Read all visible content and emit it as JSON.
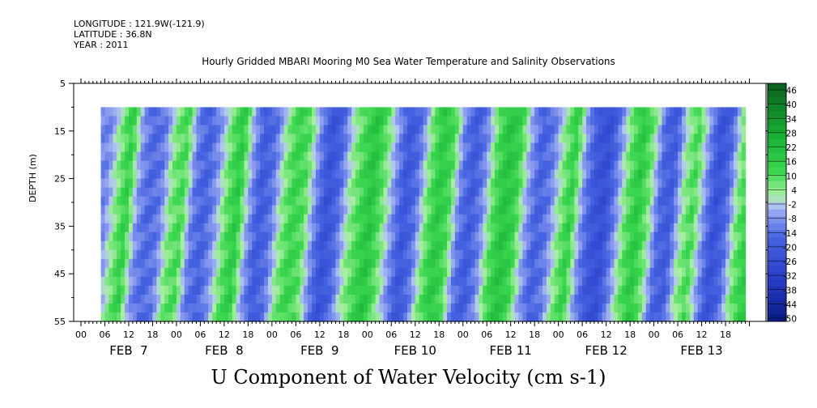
{
  "header": {
    "longitude": "LONGITUDE : 121.9W(-121.9)",
    "latitude": "LATITUDE : 36.8N",
    "year": "YEAR : 2011"
  },
  "chart_data": {
    "type": "heatmap",
    "title": "Hourly Gridded MBARI Mooring M0 Sea Water Temperature and Salinity Observations",
    "variable_title": "U Component of Water Velocity (cm s-1)",
    "ylabel": "DEPTH (m)",
    "y_ticks": [
      5,
      15,
      25,
      35,
      45,
      55
    ],
    "ylim": [
      55,
      5
    ],
    "y_axis_inverted": true,
    "x_hour_ticks": [
      "00",
      "06",
      "12",
      "18",
      "00",
      "06",
      "12",
      "18",
      "00",
      "06",
      "12",
      "18",
      "00",
      "06",
      "12",
      "18",
      "00",
      "06",
      "12",
      "18",
      "00",
      "06",
      "12",
      "18",
      "00",
      "06",
      "12",
      "18"
    ],
    "x_date_labels": [
      "FEB  7",
      "FEB  8",
      "FEB  9",
      "FEB 10",
      "FEB 11",
      "FEB 12",
      "FEB 13"
    ],
    "data_depth_range": [
      10,
      55
    ],
    "data_time_start": "FEB 7 05:00",
    "colorbar_labels": [
      "46",
      "40",
      "34",
      "28",
      "22",
      "16",
      "10",
      "4",
      "-2",
      "-8",
      "-14",
      "-20",
      "-26",
      "-32",
      "-38",
      "-44",
      "-50"
    ],
    "colorbar_min": -50,
    "colorbar_max": 52,
    "colorbar_step": 3,
    "palette": {
      "dark_blue": "#0a1a80",
      "blue": "#3a55d8",
      "light_blue": "#8f9ff0",
      "light_green": "#a8f0a0",
      "green": "#33d44a",
      "dark_green": "#0a5e1e"
    },
    "columns_u": [
      -8,
      6,
      18,
      -6,
      -14,
      -10,
      8,
      14,
      -10,
      -16,
      -6,
      10,
      20,
      -4,
      -18,
      -12,
      6,
      16,
      12,
      -8,
      -22,
      -14,
      4,
      14,
      22,
      10,
      -6,
      -20,
      -12,
      8,
      20,
      14,
      -10,
      -18,
      -8,
      12,
      22,
      16,
      -4,
      -16,
      -10,
      6,
      18,
      -6,
      -20,
      -24,
      -8,
      10,
      20,
      8,
      -14,
      -18,
      4,
      14,
      -6,
      -22,
      -14,
      8,
      18
    ]
  }
}
